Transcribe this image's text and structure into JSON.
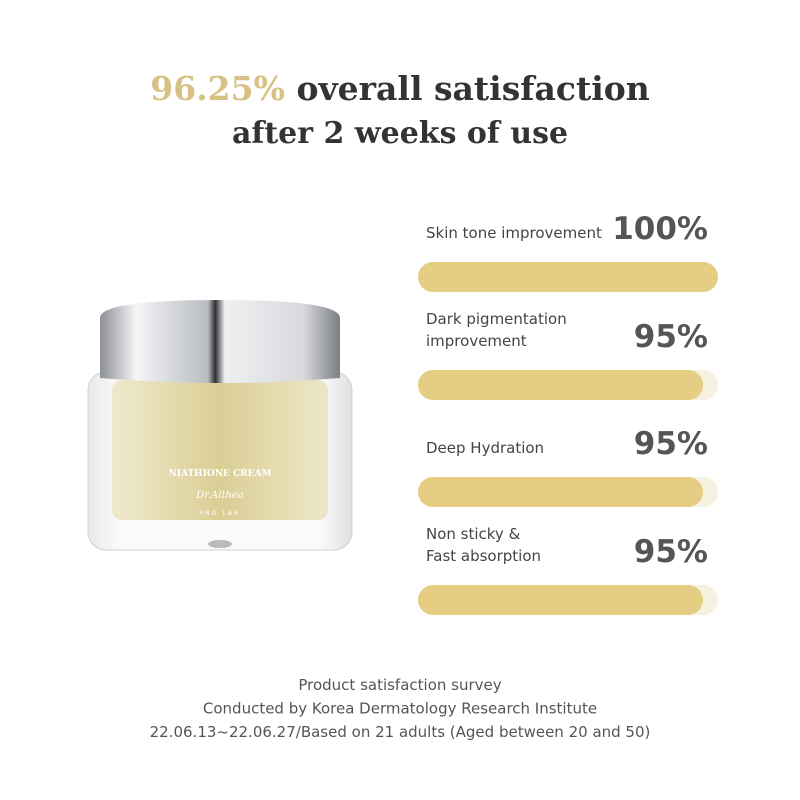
{
  "chart_data": {
    "type": "progress",
    "title_highlight": "96.25%",
    "title_rest": "overall satisfaction",
    "title_line2": "after 2 weeks of use",
    "product_labels": [
      "NIATHIONE CREAM",
      "Dr.Althea",
      "PRO LAB"
    ],
    "categories": [
      [
        "Skin tone improvement"
      ],
      [
        "Dark pigmentation",
        "improvement"
      ],
      [
        "Deep Hydration"
      ],
      [
        "Non sticky &",
        "Fast absorption"
      ]
    ],
    "values": [
      100,
      95,
      95,
      95
    ],
    "value_labels": [
      "100%",
      "95%",
      "95%",
      "95%"
    ],
    "xlim": [
      0,
      100
    ],
    "color": "#e5cd84",
    "track_color": "#f5f1de",
    "footnote": [
      "Product satisfaction survey",
      "Conducted by Korea Dermatology Research Institute",
      "22.06.13~22.06.27/Based on 21 adults (Aged between 20 and 50)"
    ]
  }
}
